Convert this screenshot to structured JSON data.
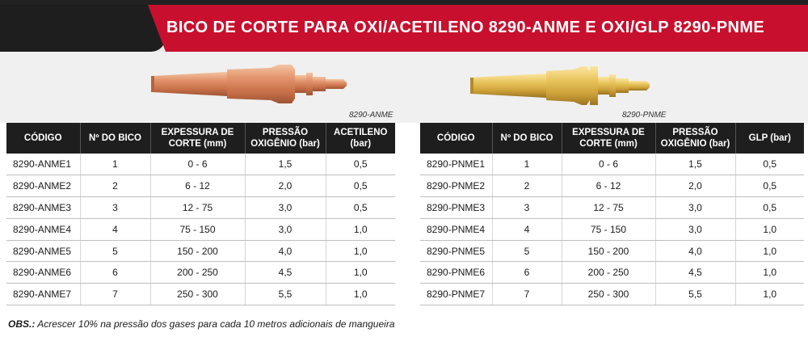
{
  "header": {
    "title": "BICO DE CORTE PARA OXI/ACETILENO 8290-ANME E OXI/GLP 8290-PNME"
  },
  "products": {
    "left_caption": "8290-ANME",
    "right_caption": "8290-PNME",
    "left_image": "copper-cutting-tip",
    "right_image": "brass-cutting-tip"
  },
  "colors": {
    "banner_red": "#c8102e",
    "header_dark": "#1e1e1e"
  },
  "table_left": {
    "headers": [
      "CÓDIGO",
      "Nº DO BICO",
      "EXPESSURA DE CORTE (mm)",
      "PRESSÃO OXIGÊNIO (bar)",
      "ACETILENO (bar)"
    ],
    "rows": [
      [
        "8290-ANME1",
        "1",
        "0 - 6",
        "1,5",
        "0,5"
      ],
      [
        "8290-ANME2",
        "2",
        "6 - 12",
        "2,0",
        "0,5"
      ],
      [
        "8290-ANME3",
        "3",
        "12 - 75",
        "3,0",
        "0,5"
      ],
      [
        "8290-ANME4",
        "4",
        "75 - 150",
        "3,0",
        "1,0"
      ],
      [
        "8290-ANME5",
        "5",
        "150 - 200",
        "4,0",
        "1,0"
      ],
      [
        "8290-ANME6",
        "6",
        "200 - 250",
        "4,5",
        "1,0"
      ],
      [
        "8290-ANME7",
        "7",
        "250 - 300",
        "5,5",
        "1,0"
      ]
    ]
  },
  "table_right": {
    "headers": [
      "CÓDIGO",
      "Nº DO BICO",
      "EXPESSURA DE CORTE (mm)",
      "PRESSÃO OXIGÊNIO (bar)",
      "GLP (bar)"
    ],
    "rows": [
      [
        "8290-PNME1",
        "1",
        "0 - 6",
        "1,5",
        "0,5"
      ],
      [
        "8290-PNME2",
        "2",
        "6 - 12",
        "2,0",
        "0,5"
      ],
      [
        "8290-PNME3",
        "3",
        "12 - 75",
        "3,0",
        "0,5"
      ],
      [
        "8290-PNME4",
        "4",
        "75 - 150",
        "3,0",
        "1,0"
      ],
      [
        "8290-PNME5",
        "5",
        "150 - 200",
        "4,0",
        "1,0"
      ],
      [
        "8290-PNME6",
        "6",
        "200 - 250",
        "4,5",
        "1,0"
      ],
      [
        "8290-PNME7",
        "7",
        "250 - 300",
        "5,5",
        "1,0"
      ]
    ]
  },
  "footnote": {
    "label": "OBS.:",
    "text": " Acrescer 10% na pressão dos gases para cada 10 metros adicionais de mangueira"
  }
}
